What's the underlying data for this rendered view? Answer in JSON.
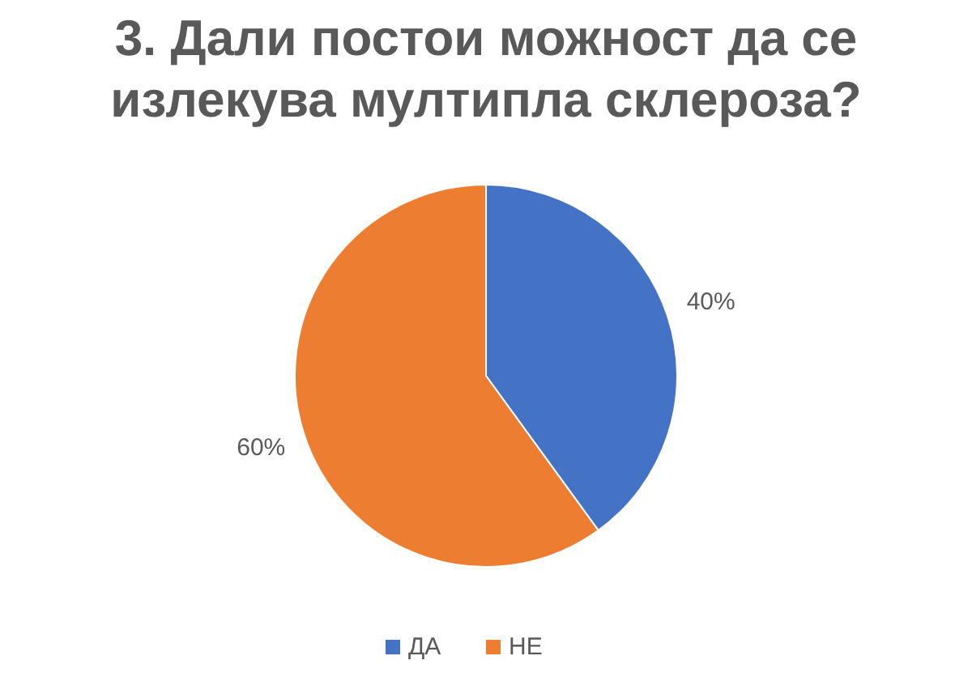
{
  "chart_data": {
    "type": "pie",
    "title": "3. Дали постои можност да се излекува мултипла склероза?",
    "categories": [
      "ДА",
      "НЕ"
    ],
    "values": [
      40,
      60
    ],
    "colors": [
      "#4472c4",
      "#ed7d31"
    ],
    "value_labels": [
      "40%",
      "60%"
    ],
    "legend": "bottom"
  }
}
